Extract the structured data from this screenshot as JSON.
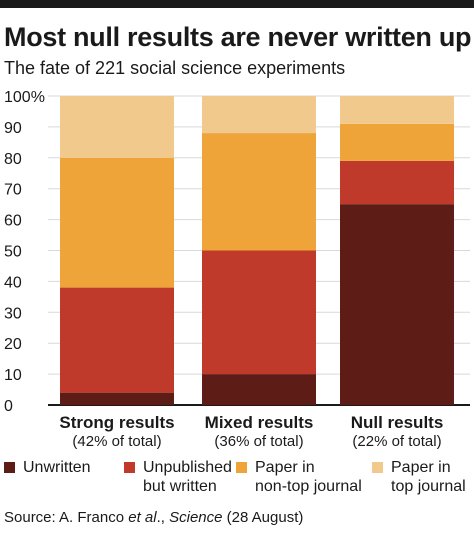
{
  "title": "Most null results are never written up",
  "subtitle": "The fate of 221 social science experiments",
  "colors": {
    "unwritten": "#5e1c16",
    "unpublished": "#c03a2b",
    "non_top": "#efa43a",
    "top": "#f2c98c",
    "grid": "#d9d9d9"
  },
  "chart_data": {
    "type": "bar",
    "stacked": true,
    "yaxis": {
      "ylim": [
        0,
        100
      ],
      "ticks": [
        0,
        10,
        20,
        30,
        40,
        50,
        60,
        70,
        80,
        90,
        100
      ],
      "tick_labels": [
        "0",
        "10",
        "20",
        "30",
        "40",
        "50",
        "60",
        "70",
        "80",
        "90",
        "100%"
      ]
    },
    "grid": true,
    "categories": [
      "Strong results",
      "Mixed results",
      "Null results"
    ],
    "category_sublabels": [
      "(42% of total)",
      "(36% of total)",
      "(22% of total)"
    ],
    "series": [
      {
        "key": "unwritten",
        "name": "Unwritten",
        "values": [
          4,
          10,
          65
        ]
      },
      {
        "key": "unpublished",
        "name": "Unpublished but written",
        "values": [
          34,
          40,
          14
        ]
      },
      {
        "key": "non_top",
        "name": "Paper in non-top journal",
        "values": [
          42,
          38,
          12
        ]
      },
      {
        "key": "top",
        "name": "Paper in top journal",
        "values": [
          20,
          12,
          9
        ]
      }
    ]
  },
  "legend": [
    {
      "label_line1": "Unwritten",
      "label_line2": ""
    },
    {
      "label_line1": "Unpublished",
      "label_line2": "but written"
    },
    {
      "label_line1": "Paper in",
      "label_line2": "non-top journal"
    },
    {
      "label_line1": "Paper in",
      "label_line2": "top journal"
    }
  ],
  "source": {
    "prefix": "Source: A. Franco ",
    "etal": "et al",
    "middle": "., ",
    "journal": "Science",
    "suffix": " (28 August)"
  }
}
